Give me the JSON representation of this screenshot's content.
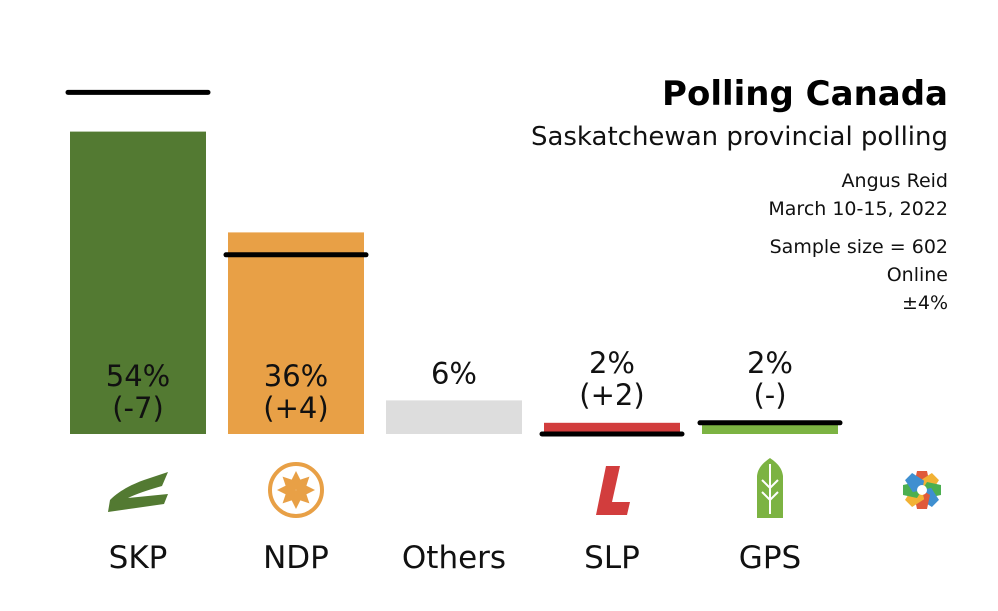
{
  "header": {
    "title": "Polling Canada",
    "subtitle": "Saskatchewan provincial polling",
    "pollster": "Angus Reid",
    "dates": "March 10-15, 2022",
    "sample": "Sample size = 602",
    "method": "Online",
    "margin": "±4%"
  },
  "chart_data": {
    "type": "bar",
    "categories": [
      "SKP",
      "NDP",
      "Others",
      "SLP",
      "GPS"
    ],
    "values": [
      54,
      36,
      6,
      2,
      2
    ],
    "previous_values": [
      61,
      32,
      null,
      0,
      2
    ],
    "value_labels": [
      "54%",
      "36%",
      "6%",
      "2%",
      "2%"
    ],
    "change_labels": [
      "(-7)",
      "(+4)",
      "",
      "(+2)",
      "(-)"
    ],
    "colors": [
      "#537a32",
      "#e8a046",
      "#dddddd",
      "#d23d3d",
      "#7cb342"
    ],
    "icons": [
      "skp-party-icon",
      "ndp-party-icon",
      "",
      "slp-party-icon",
      "gps-party-icon"
    ],
    "title": "Polling Canada",
    "xlabel": "",
    "ylabel": "",
    "ylim": [
      0,
      60
    ],
    "grid": false,
    "legend": "none"
  }
}
